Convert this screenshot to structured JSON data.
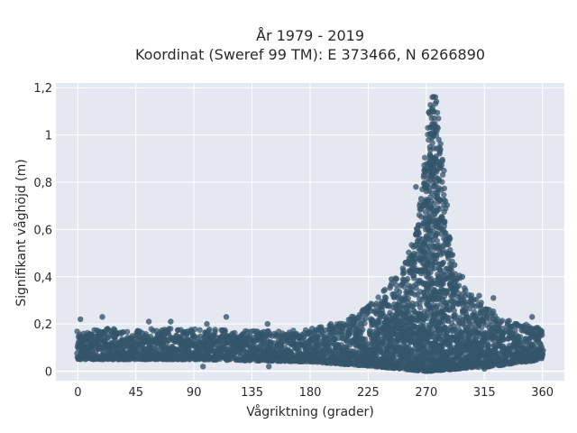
{
  "chart_data": {
    "type": "scatter",
    "title": "År 1979 - 2019",
    "subtitle": "Koordinat (Sweref 99 TM): E 373466, N 6266890",
    "xlabel": "Vågriktning (grader)",
    "ylabel": "Signifikant våghöjd (m)",
    "xlim": [
      -17,
      377
    ],
    "ylim": [
      -0.04,
      1.22
    ],
    "x_ticks": [
      0,
      45,
      90,
      135,
      180,
      225,
      270,
      315,
      360
    ],
    "x_tick_labels": [
      "0",
      "45",
      "90",
      "135",
      "180",
      "225",
      "270",
      "315",
      "360"
    ],
    "y_ticks": [
      0,
      0.2,
      0.4,
      0.6,
      0.8,
      1.0,
      1.2
    ],
    "y_tick_labels": [
      "0",
      "0,2",
      "0,4",
      "0,6",
      "0,8",
      "1",
      "1,2"
    ],
    "grid": true,
    "series": [
      {
        "color": "#34566b",
        "envelope_upper": {
          "x": [
            0,
            20,
            45,
            90,
            135,
            160,
            180,
            200,
            215,
            230,
            240,
            250,
            258,
            263,
            266,
            269,
            272,
            275,
            278,
            281,
            284,
            287,
            290,
            295,
            300,
            310,
            320,
            330,
            345,
            360
          ],
          "y": [
            0.17,
            0.18,
            0.18,
            0.18,
            0.17,
            0.17,
            0.18,
            0.2,
            0.24,
            0.3,
            0.36,
            0.42,
            0.52,
            0.62,
            0.76,
            0.92,
            1.1,
            1.18,
            1.17,
            1.0,
            0.8,
            0.62,
            0.5,
            0.42,
            0.36,
            0.3,
            0.26,
            0.22,
            0.2,
            0.18
          ]
        },
        "envelope_lower": {
          "x": [
            0,
            90,
            180,
            230,
            270,
            320,
            360
          ],
          "y": [
            0.05,
            0.05,
            0.04,
            0.02,
            0.0,
            0.02,
            0.05
          ]
        },
        "outliers": [
          {
            "x": 2,
            "y": 0.22
          },
          {
            "x": 19,
            "y": 0.23
          },
          {
            "x": 55,
            "y": 0.21
          },
          {
            "x": 72,
            "y": 0.21
          },
          {
            "x": 100,
            "y": 0.2
          },
          {
            "x": 115,
            "y": 0.23
          },
          {
            "x": 147,
            "y": 0.2
          },
          {
            "x": 196,
            "y": 0.2
          },
          {
            "x": 237,
            "y": 0.34
          },
          {
            "x": 243,
            "y": 0.39
          },
          {
            "x": 254,
            "y": 0.46
          },
          {
            "x": 262,
            "y": 0.78
          },
          {
            "x": 266,
            "y": 0.73
          },
          {
            "x": 292,
            "y": 0.45
          },
          {
            "x": 298,
            "y": 0.4
          },
          {
            "x": 311,
            "y": 0.32
          },
          {
            "x": 322,
            "y": 0.31
          },
          {
            "x": 340,
            "y": 0.2
          },
          {
            "x": 352,
            "y": 0.23
          },
          {
            "x": 97,
            "y": 0.02
          },
          {
            "x": 148,
            "y": 0.02
          },
          {
            "x": 315,
            "y": 0.01
          }
        ]
      }
    ]
  }
}
